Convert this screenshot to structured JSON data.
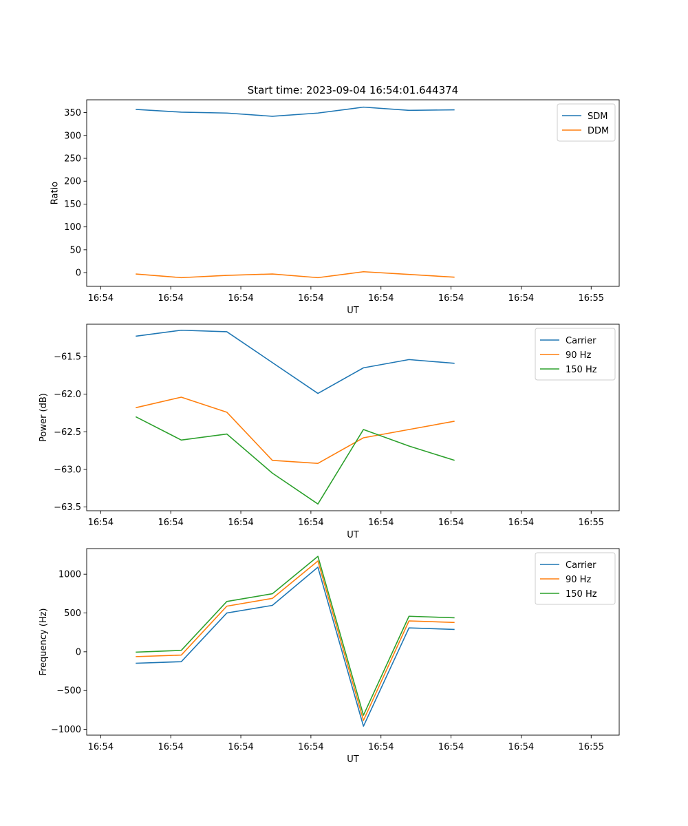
{
  "title": "Start time: 2023-09-04 16:54:01.644374",
  "colors": {
    "blue": "#1f77b4",
    "orange": "#ff7f0e",
    "green": "#2ca02c"
  },
  "chart_data": [
    {
      "type": "line",
      "name": "ratio",
      "xlabel": "UT",
      "ylabel": "Ratio",
      "x_tick_labels": [
        "16:54",
        "16:54",
        "16:54",
        "16:54",
        "16:54",
        "16:54",
        "16:54"
      ],
      "x_last_tick_label": "16:55",
      "x_tick_values": [
        0,
        1,
        2,
        3,
        4,
        5,
        6,
        7
      ],
      "xlim": [
        -0.2,
        7.4
      ],
      "x": [
        0.5,
        1.15,
        1.8,
        2.45,
        3.1,
        3.75,
        4.4,
        5.05
      ],
      "ylim": [
        -30,
        378
      ],
      "y_ticks": [
        0,
        50,
        100,
        150,
        200,
        250,
        300,
        350
      ],
      "y_tick_labels": [
        "0",
        "50",
        "100",
        "150",
        "200",
        "250",
        "300",
        "350"
      ],
      "legend_position": "top-right",
      "series": [
        {
          "name": "SDM",
          "color": "#1f77b4",
          "values": [
            357,
            351,
            349,
            342,
            349,
            362,
            355,
            356
          ]
        },
        {
          "name": "DDM",
          "color": "#ff7f0e",
          "values": [
            -3,
            -11,
            -6,
            -3,
            -11,
            2,
            -4,
            -10
          ]
        }
      ]
    },
    {
      "type": "line",
      "name": "power",
      "xlabel": "UT",
      "ylabel": "Power (dB)",
      "x_tick_labels": [
        "16:54",
        "16:54",
        "16:54",
        "16:54",
        "16:54",
        "16:54",
        "16:54"
      ],
      "x_last_tick_label": "16:55",
      "x_tick_values": [
        0,
        1,
        2,
        3,
        4,
        5,
        6,
        7
      ],
      "xlim": [
        -0.2,
        7.4
      ],
      "x": [
        0.5,
        1.15,
        1.8,
        2.45,
        3.1,
        3.75,
        4.4,
        5.05
      ],
      "ylim": [
        -63.55,
        -61.07
      ],
      "y_ticks": [
        -63.5,
        -63.0,
        -62.5,
        -62.0,
        -61.5
      ],
      "y_tick_labels": [
        "−63.5",
        "−63.0",
        "−62.5",
        "−62.0",
        "−61.5"
      ],
      "legend_position": "top-right",
      "series": [
        {
          "name": "Carrier",
          "color": "#1f77b4",
          "values": [
            -61.23,
            -61.15,
            -61.17,
            -61.58,
            -61.99,
            -61.65,
            -61.54,
            -61.59
          ]
        },
        {
          "name": "90 Hz",
          "color": "#ff7f0e",
          "values": [
            -62.18,
            -62.04,
            -62.24,
            -62.88,
            -62.92,
            -62.58,
            -62.47,
            -62.36
          ]
        },
        {
          "name": "150 Hz",
          "color": "#2ca02c",
          "values": [
            -62.3,
            -62.61,
            -62.53,
            -63.05,
            -63.46,
            -62.47,
            -62.69,
            -62.88
          ]
        }
      ]
    },
    {
      "type": "line",
      "name": "frequency",
      "xlabel": "UT",
      "ylabel": "Frequency (Hz)",
      "x_tick_labels": [
        "16:54",
        "16:54",
        "16:54",
        "16:54",
        "16:54",
        "16:54",
        "16:54"
      ],
      "x_last_tick_label": "16:55",
      "x_tick_values": [
        0,
        1,
        2,
        3,
        4,
        5,
        6,
        7
      ],
      "xlim": [
        -0.2,
        7.4
      ],
      "x": [
        0.5,
        1.15,
        1.8,
        2.45,
        3.1,
        3.75,
        4.4,
        5.05
      ],
      "ylim": [
        -1075,
        1330
      ],
      "y_ticks": [
        -1000,
        -500,
        0,
        500,
        1000
      ],
      "y_tick_labels": [
        "−1000",
        "−500",
        "0",
        "500",
        "1000"
      ],
      "legend_position": "top-right",
      "series": [
        {
          "name": "Carrier",
          "color": "#1f77b4",
          "values": [
            -148,
            -128,
            500,
            598,
            1090,
            -960,
            308,
            288
          ]
        },
        {
          "name": "90 Hz",
          "color": "#ff7f0e",
          "values": [
            -63,
            -43,
            588,
            688,
            1170,
            -885,
            398,
            378
          ]
        },
        {
          "name": "150 Hz",
          "color": "#2ca02c",
          "values": [
            -5,
            18,
            648,
            748,
            1230,
            -818,
            458,
            438
          ]
        }
      ]
    }
  ]
}
